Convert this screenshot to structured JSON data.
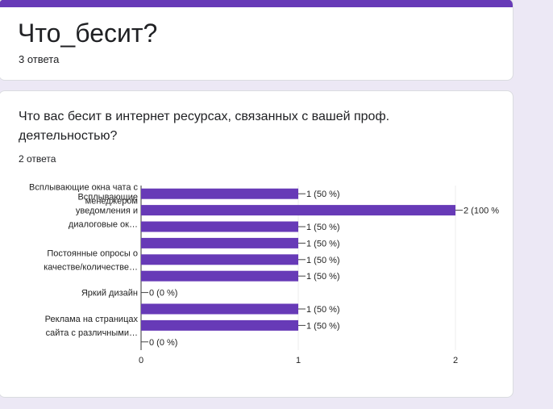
{
  "form": {
    "title": "Что_бесит?",
    "responses": "3 ответа",
    "accent_color": "#673ab7"
  },
  "question": {
    "title": "Что вас бесит в интернет ресурсах, связанных с вашей проф. деятельностью?",
    "responses": "2 ответа"
  },
  "chart_data": {
    "type": "bar",
    "orientation": "horizontal",
    "categories": [
      [
        "Всплывающие окна чата с",
        "менеджером"
      ],
      [
        "Всплывающие",
        "уведомления и",
        "диалоговые ок…"
      ],
      [],
      [],
      [
        "Постоянные опросы о",
        "качестве/количестве…"
      ],
      [],
      [
        "Яркий дизайн"
      ],
      [],
      [
        "Реклама на страницах",
        "сайта с различными…"
      ],
      []
    ],
    "values": [
      1,
      2,
      1,
      1,
      1,
      1,
      0,
      1,
      1,
      0
    ],
    "data_labels": [
      "1 (50 %)",
      "2 (100 %",
      "1 (50 %)",
      "1 (50 %)",
      "1 (50 %)",
      "1 (50 %)",
      "0 (0 %)",
      "1 (50 %)",
      "1 (50 %)",
      "0 (0 %)"
    ],
    "x_ticks": [
      "0",
      "1",
      "2"
    ],
    "xlim": [
      0,
      2
    ],
    "grid": true,
    "bar_color": "#673ab7"
  }
}
